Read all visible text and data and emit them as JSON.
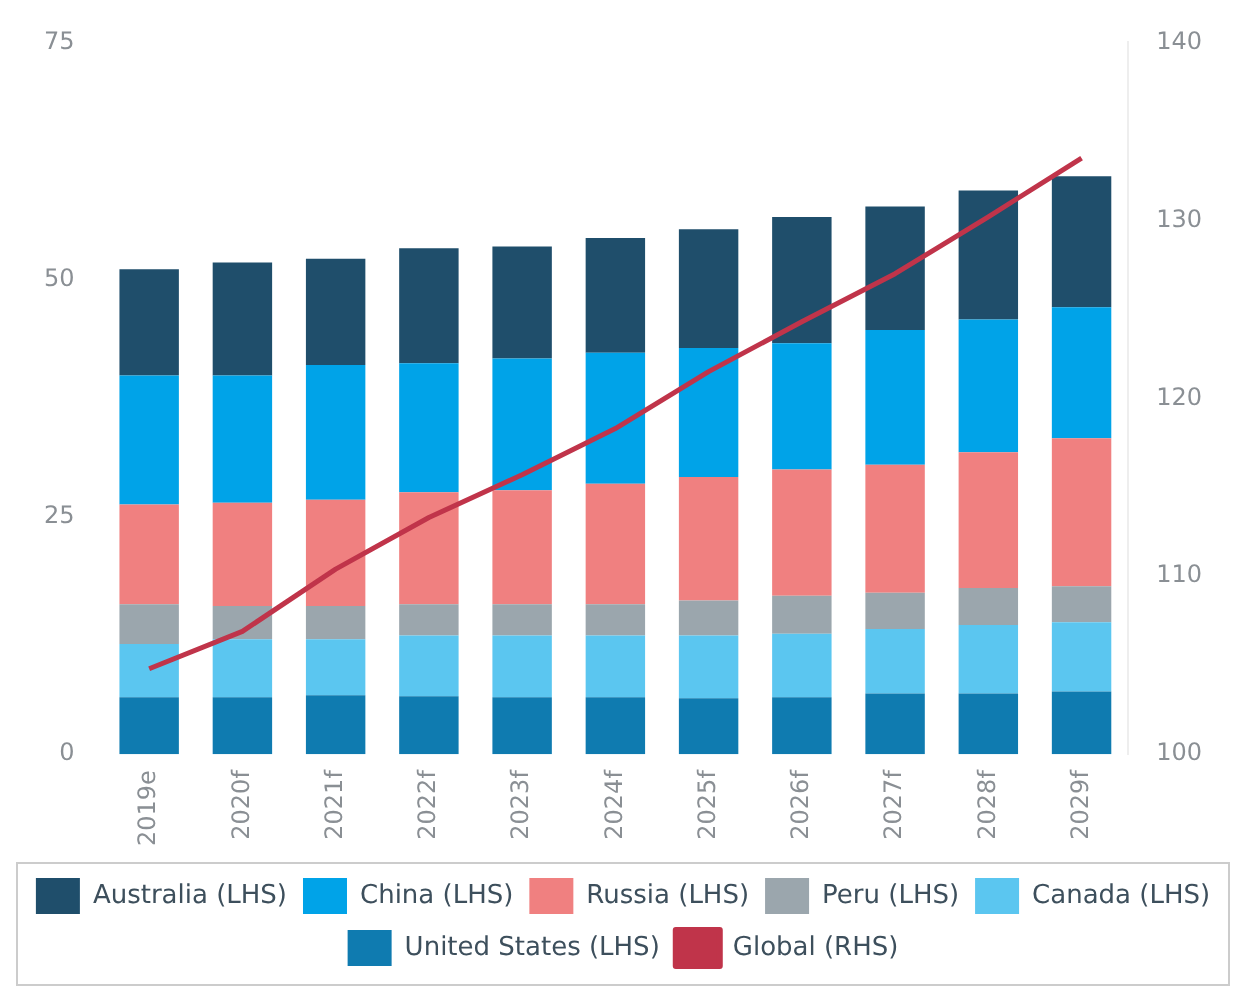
{
  "chart_data": {
    "type": "bar",
    "stacked": true,
    "categories": [
      "2019e",
      "2020f",
      "2021f",
      "2022f",
      "2023f",
      "2024f",
      "2025f",
      "2026f",
      "2027f",
      "2028f",
      "2029f"
    ],
    "series": [
      {
        "name": "United States (LHS)",
        "color": "#0f7bb0",
        "values": [
          6,
          6,
          6.2,
          6.1,
          6,
          6,
          5.9,
          6,
          6.4,
          6.4,
          6.6
        ]
      },
      {
        "name": "Canada (LHS)",
        "color": "#5bc6f0",
        "values": [
          5.6,
          6.1,
          5.9,
          6.4,
          6.5,
          6.5,
          6.6,
          6.7,
          6.8,
          7.2,
          7.3
        ]
      },
      {
        "name": "Peru (LHS)",
        "color": "#9ba6ad",
        "values": [
          4.2,
          3.5,
          3.5,
          3.3,
          3.3,
          3.3,
          3.7,
          4,
          3.8,
          3.9,
          3.8
        ]
      },
      {
        "name": "Russia (LHS)",
        "color": "#f08080",
        "values": [
          10.5,
          10.9,
          11.2,
          11.8,
          12,
          12.7,
          13,
          13.3,
          13.5,
          14.3,
          15.6
        ]
      },
      {
        "name": "China (LHS)",
        "color": "#00a3e8",
        "values": [
          13.6,
          13.4,
          14.2,
          13.6,
          13.9,
          13.8,
          13.6,
          13.3,
          14.2,
          14,
          13.8
        ]
      },
      {
        "name": "Australia (LHS)",
        "color": "#1f4e6b",
        "values": [
          11.2,
          11.9,
          11.2,
          12.1,
          11.8,
          12.1,
          12.5,
          13.3,
          13,
          13.6,
          13.8
        ]
      },
      {
        "name": "Global (RHS)",
        "type": "line",
        "axis": "y2",
        "color": "#c0344a",
        "values": [
          104.8,
          106.9,
          110.4,
          113.3,
          115.7,
          118.3,
          121.5,
          124.3,
          127,
          130.2,
          133.5
        ]
      }
    ],
    "ylim": [
      0,
      75
    ],
    "yticks": [
      0,
      25,
      50,
      75
    ],
    "y2lim": [
      100,
      140
    ],
    "y2ticks": [
      100,
      110,
      120,
      130,
      140
    ],
    "grid": false,
    "legend": "bottom",
    "marker": "none"
  }
}
